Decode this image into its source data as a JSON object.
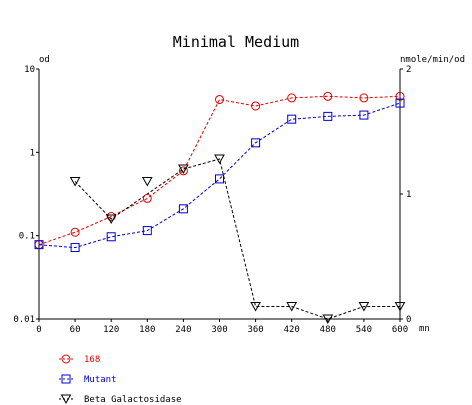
{
  "chart_data": {
    "type": "line",
    "title": "Minimal Medium",
    "y_left_unit": "od",
    "y_right_unit": "nmole/min/od",
    "x_unit": "mn",
    "x_ticks": [
      0,
      60,
      120,
      180,
      240,
      300,
      360,
      420,
      480,
      540,
      600
    ],
    "x_tick_labels": [
      "0",
      "60",
      "120",
      "180",
      "240",
      "300",
      "360",
      "420",
      "480",
      "540",
      "600"
    ],
    "xlim": [
      0,
      600
    ],
    "y_left": {
      "scale": "log",
      "range": [
        0.01,
        10
      ],
      "tick_labels": [
        "10",
        "1",
        "0.1",
        "0.01"
      ],
      "ticks": [
        10,
        1,
        0.1,
        0.01
      ]
    },
    "y_right": {
      "scale": "linear",
      "range": [
        0,
        2
      ],
      "tick_labels": [
        "2",
        "1",
        "0"
      ],
      "ticks": [
        2,
        1,
        0
      ]
    },
    "series": [
      {
        "name": "168",
        "axis": "left",
        "color": "#e00000",
        "marker": "circle",
        "x": [
          0,
          60,
          120,
          180,
          240,
          300,
          360,
          420,
          480,
          540,
          600
        ],
        "y": [
          0.078,
          0.11,
          0.17,
          0.28,
          0.6,
          4.3,
          3.6,
          4.5,
          4.7,
          4.5,
          4.7
        ]
      },
      {
        "name": "Mutant",
        "axis": "left",
        "color": "#0000d0",
        "marker": "square",
        "x": [
          0,
          60,
          120,
          180,
          240,
          300,
          360,
          420,
          480,
          540,
          600
        ],
        "y": [
          0.078,
          0.072,
          0.097,
          0.115,
          0.21,
          0.48,
          1.3,
          2.5,
          2.7,
          2.8,
          3.9
        ]
      },
      {
        "name": "Beta Galactosidase",
        "axis": "right",
        "color": "#000000",
        "marker": "triangle-down",
        "x": [
          60,
          120,
          240,
          300,
          360,
          420,
          480,
          540,
          600
        ],
        "y": [
          1.1,
          0.8,
          1.2,
          1.28,
          0.1,
          0.1,
          0.0,
          0.1,
          0.1
        ]
      }
    ],
    "bg_series_extra": {
      "x": [
        180
      ],
      "y": [
        1.1
      ]
    },
    "legend_placement": "bottom-left",
    "grid": false
  }
}
